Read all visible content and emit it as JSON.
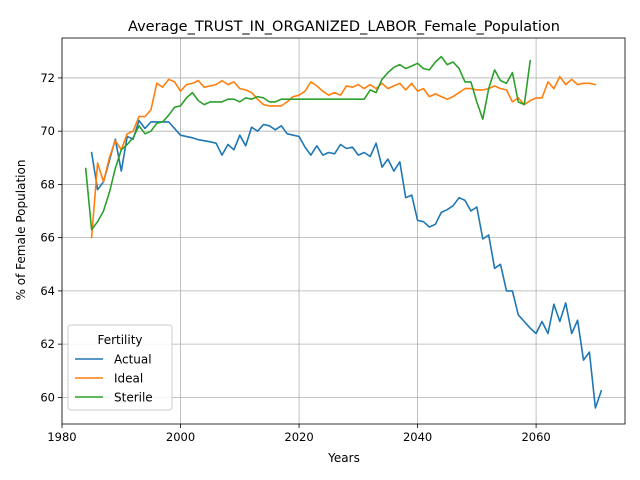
{
  "chart_data": {
    "type": "line",
    "title": "Average_TRUST_IN_ORGANIZED_LABOR_Female_Population",
    "xlabel": "Years",
    "ylabel": "% of Female Population",
    "xlim": [
      1980,
      2075
    ],
    "ylim": [
      59,
      73.5
    ],
    "xticks": [
      1980,
      2000,
      2020,
      2040,
      2060
    ],
    "yticks": [
      60,
      62,
      64,
      66,
      68,
      70,
      72
    ],
    "grid": true,
    "legend": {
      "title": "Fertility",
      "position": "lower-left"
    },
    "series": [
      {
        "name": "Actual",
        "color": "#1f77b4",
        "points": [
          [
            1985,
            69.2
          ],
          [
            1986,
            67.8
          ],
          [
            1987,
            68.1
          ],
          [
            1988,
            68.9
          ],
          [
            1989,
            69.7
          ],
          [
            1990,
            68.5
          ],
          [
            1991,
            69.8
          ],
          [
            1992,
            69.7
          ],
          [
            1993,
            70.4
          ],
          [
            1994,
            70.1
          ],
          [
            1995,
            70.35
          ],
          [
            1996,
            70.35
          ],
          [
            1997,
            70.35
          ],
          [
            1998,
            70.35
          ],
          [
            2000,
            69.85
          ],
          [
            2002,
            69.75
          ],
          [
            2003,
            69.68
          ],
          [
            2005,
            69.6
          ],
          [
            2006,
            69.55
          ],
          [
            2007,
            69.1
          ],
          [
            2008,
            69.5
          ],
          [
            2009,
            69.3
          ],
          [
            2010,
            69.85
          ],
          [
            2011,
            69.45
          ],
          [
            2012,
            70.15
          ],
          [
            2013,
            70.0
          ],
          [
            2014,
            70.25
          ],
          [
            2015,
            70.2
          ],
          [
            2016,
            70.05
          ],
          [
            2017,
            70.2
          ],
          [
            2018,
            69.9
          ],
          [
            2020,
            69.8
          ],
          [
            2021,
            69.4
          ],
          [
            2022,
            69.1
          ],
          [
            2023,
            69.45
          ],
          [
            2024,
            69.1
          ],
          [
            2025,
            69.2
          ],
          [
            2026,
            69.15
          ],
          [
            2027,
            69.5
          ],
          [
            2028,
            69.35
          ],
          [
            2029,
            69.4
          ],
          [
            2030,
            69.1
          ],
          [
            2031,
            69.2
          ],
          [
            2032,
            69.05
          ],
          [
            2033,
            69.55
          ],
          [
            2034,
            68.65
          ],
          [
            2035,
            68.95
          ],
          [
            2036,
            68.5
          ],
          [
            2037,
            68.85
          ],
          [
            2038,
            67.5
          ],
          [
            2039,
            67.6
          ],
          [
            2040,
            66.65
          ],
          [
            2041,
            66.6
          ],
          [
            2042,
            66.4
          ],
          [
            2043,
            66.5
          ],
          [
            2044,
            66.95
          ],
          [
            2045,
            67.05
          ],
          [
            2046,
            67.2
          ],
          [
            2047,
            67.5
          ],
          [
            2048,
            67.4
          ],
          [
            2049,
            67.0
          ],
          [
            2050,
            67.15
          ],
          [
            2051,
            65.95
          ],
          [
            2052,
            66.1
          ],
          [
            2053,
            64.85
          ],
          [
            2054,
            65.0
          ],
          [
            2055,
            64.0
          ],
          [
            2056,
            64.0
          ],
          [
            2057,
            63.1
          ],
          [
            2058,
            62.85
          ],
          [
            2059,
            62.6
          ],
          [
            2060,
            62.4
          ],
          [
            2061,
            62.85
          ],
          [
            2062,
            62.4
          ],
          [
            2063,
            63.5
          ],
          [
            2064,
            62.85
          ],
          [
            2065,
            63.55
          ],
          [
            2066,
            62.4
          ],
          [
            2067,
            62.9
          ],
          [
            2068,
            61.4
          ],
          [
            2069,
            61.7
          ],
          [
            2070,
            59.6
          ],
          [
            2071,
            60.25
          ]
        ]
      },
      {
        "name": "Ideal",
        "color": "#ff7f0e",
        "points": [
          [
            1985,
            66.0
          ],
          [
            1986,
            68.8
          ],
          [
            1987,
            68.1
          ],
          [
            1988,
            69.0
          ],
          [
            1989,
            69.65
          ],
          [
            1990,
            69.3
          ],
          [
            1991,
            69.9
          ],
          [
            1992,
            70.0
          ],
          [
            1993,
            70.55
          ],
          [
            1994,
            70.55
          ],
          [
            1995,
            70.8
          ],
          [
            1996,
            71.8
          ],
          [
            1997,
            71.65
          ],
          [
            1998,
            71.95
          ],
          [
            1999,
            71.85
          ],
          [
            2000,
            71.5
          ],
          [
            2001,
            71.75
          ],
          [
            2002,
            71.8
          ],
          [
            2003,
            71.9
          ],
          [
            2004,
            71.65
          ],
          [
            2005,
            71.7
          ],
          [
            2006,
            71.75
          ],
          [
            2007,
            71.9
          ],
          [
            2008,
            71.75
          ],
          [
            2009,
            71.85
          ],
          [
            2010,
            71.6
          ],
          [
            2011,
            71.55
          ],
          [
            2012,
            71.45
          ],
          [
            2013,
            71.2
          ],
          [
            2014,
            71.0
          ],
          [
            2015,
            70.95
          ],
          [
            2016,
            70.95
          ],
          [
            2017,
            70.95
          ],
          [
            2018,
            71.1
          ],
          [
            2019,
            71.3
          ],
          [
            2020,
            71.35
          ],
          [
            2021,
            71.5
          ],
          [
            2022,
            71.85
          ],
          [
            2023,
            71.7
          ],
          [
            2024,
            71.5
          ],
          [
            2025,
            71.35
          ],
          [
            2026,
            71.45
          ],
          [
            2027,
            71.35
          ],
          [
            2028,
            71.7
          ],
          [
            2029,
            71.65
          ],
          [
            2030,
            71.75
          ],
          [
            2031,
            71.6
          ],
          [
            2032,
            71.75
          ],
          [
            2033,
            71.6
          ],
          [
            2034,
            71.8
          ],
          [
            2035,
            71.6
          ],
          [
            2036,
            71.7
          ],
          [
            2037,
            71.8
          ],
          [
            2038,
            71.55
          ],
          [
            2039,
            71.8
          ],
          [
            2040,
            71.5
          ],
          [
            2041,
            71.6
          ],
          [
            2042,
            71.3
          ],
          [
            2043,
            71.4
          ],
          [
            2044,
            71.3
          ],
          [
            2045,
            71.2
          ],
          [
            2046,
            71.3
          ],
          [
            2047,
            71.45
          ],
          [
            2048,
            71.6
          ],
          [
            2049,
            71.6
          ],
          [
            2050,
            71.55
          ],
          [
            2051,
            71.55
          ],
          [
            2052,
            71.6
          ],
          [
            2053,
            71.7
          ],
          [
            2054,
            71.6
          ],
          [
            2055,
            71.55
          ],
          [
            2056,
            71.1
          ],
          [
            2057,
            71.25
          ],
          [
            2058,
            71.0
          ],
          [
            2059,
            71.15
          ],
          [
            2060,
            71.25
          ],
          [
            2061,
            71.25
          ],
          [
            2062,
            71.85
          ],
          [
            2063,
            71.6
          ],
          [
            2064,
            72.05
          ],
          [
            2065,
            71.75
          ],
          [
            2066,
            71.95
          ],
          [
            2067,
            71.75
          ],
          [
            2068,
            71.8
          ],
          [
            2069,
            71.8
          ],
          [
            2070,
            71.75
          ]
        ]
      },
      {
        "name": "Sterile",
        "color": "#2ca02c",
        "points": [
          [
            1984,
            68.6
          ],
          [
            1985,
            66.3
          ],
          [
            1986,
            66.6
          ],
          [
            1987,
            67.0
          ],
          [
            1988,
            67.7
          ],
          [
            1989,
            68.6
          ],
          [
            1990,
            69.3
          ],
          [
            1991,
            69.5
          ],
          [
            1992,
            69.75
          ],
          [
            1993,
            70.2
          ],
          [
            1994,
            69.9
          ],
          [
            1995,
            70.0
          ],
          [
            1996,
            70.3
          ],
          [
            1997,
            70.35
          ],
          [
            1998,
            70.6
          ],
          [
            1999,
            70.9
          ],
          [
            2000,
            70.95
          ],
          [
            2001,
            71.25
          ],
          [
            2002,
            71.45
          ],
          [
            2003,
            71.15
          ],
          [
            2004,
            71.0
          ],
          [
            2005,
            71.1
          ],
          [
            2006,
            71.1
          ],
          [
            2007,
            71.1
          ],
          [
            2008,
            71.2
          ],
          [
            2009,
            71.2
          ],
          [
            2010,
            71.1
          ],
          [
            2011,
            71.25
          ],
          [
            2012,
            71.2
          ],
          [
            2013,
            71.3
          ],
          [
            2014,
            71.25
          ],
          [
            2015,
            71.1
          ],
          [
            2016,
            71.1
          ],
          [
            2017,
            71.2
          ],
          [
            2018,
            71.2
          ],
          [
            2020,
            71.2
          ],
          [
            2025,
            71.2
          ],
          [
            2030,
            71.2
          ],
          [
            2031,
            71.2
          ],
          [
            2032,
            71.55
          ],
          [
            2033,
            71.45
          ],
          [
            2034,
            71.95
          ],
          [
            2035,
            72.2
          ],
          [
            2036,
            72.4
          ],
          [
            2037,
            72.5
          ],
          [
            2038,
            72.35
          ],
          [
            2039,
            72.45
          ],
          [
            2040,
            72.55
          ],
          [
            2041,
            72.35
          ],
          [
            2042,
            72.3
          ],
          [
            2043,
            72.6
          ],
          [
            2044,
            72.8
          ],
          [
            2045,
            72.5
          ],
          [
            2046,
            72.6
          ],
          [
            2047,
            72.35
          ],
          [
            2048,
            71.85
          ],
          [
            2049,
            71.85
          ],
          [
            2050,
            71.1
          ],
          [
            2051,
            70.45
          ],
          [
            2052,
            71.6
          ],
          [
            2053,
            72.3
          ],
          [
            2054,
            71.9
          ],
          [
            2055,
            71.8
          ],
          [
            2056,
            72.2
          ],
          [
            2057,
            71.1
          ],
          [
            2058,
            71.0
          ],
          [
            2059,
            72.65
          ]
        ]
      }
    ]
  }
}
